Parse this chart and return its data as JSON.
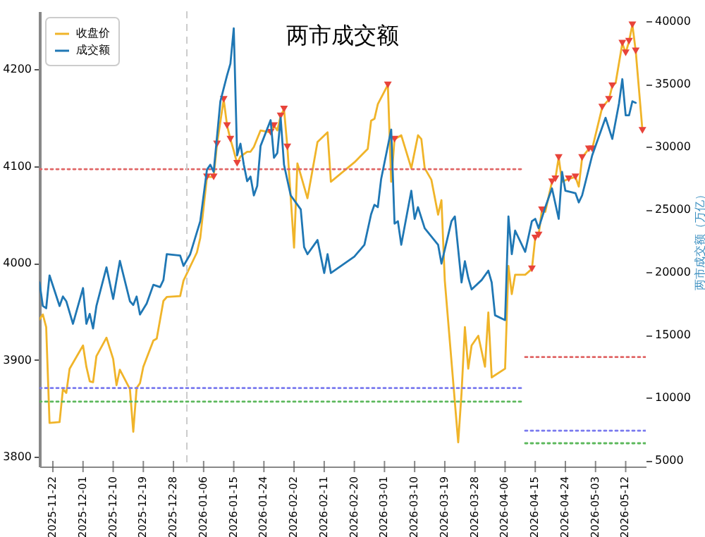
{
  "chart_data": {
    "type": "line",
    "title": "两市成交额",
    "y2label": "两市成交额（万亿）",
    "legend": "top left",
    "xlim": [
      "2025-11-18",
      "2026-05-18"
    ],
    "xticks": [
      "2025-11-22",
      "2025-12-01",
      "2025-12-10",
      "2025-12-19",
      "2025-12-28",
      "2026-01-06",
      "2026-01-15",
      "2026-01-24",
      "2026-02-02",
      "2026-02-11",
      "2026-02-20",
      "2026-03-01",
      "2026-03-10",
      "2026-03-19",
      "2026-03-28",
      "2026-04-06",
      "2026-04-15",
      "2026-04-24",
      "2026-05-03",
      "2026-05-12"
    ],
    "ylim": [
      3790,
      4260
    ],
    "yticks": [
      3800,
      3900,
      4000,
      4100,
      4200
    ],
    "y2lim": [
      4500,
      40800
    ],
    "y2ticks": [
      5000,
      10000,
      15000,
      20000,
      25000,
      30000,
      35000,
      40000
    ],
    "ref_lines": [
      {
        "axis": "x",
        "value": "2026-01-01",
        "color": "#cccccc",
        "line_style": "dashed"
      }
    ],
    "series": [
      {
        "name": "收盘价",
        "type": "line",
        "color": "#f0b429",
        "x": [
          "2025-11-18",
          "2025-11-19",
          "2025-11-20",
          "2025-11-21",
          "2025-11-24",
          "2025-11-25",
          "2025-11-26",
          "2025-11-27",
          "2025-12-01",
          "2025-12-02",
          "2025-12-03",
          "2025-12-04",
          "2025-12-05",
          "2025-12-08",
          "2025-12-10",
          "2025-12-11",
          "2025-12-12",
          "2025-12-15",
          "2025-12-16",
          "2025-12-17",
          "2025-12-18",
          "2025-12-19",
          "2025-12-22",
          "2025-12-23",
          "2025-12-25",
          "2025-12-26",
          "2025-12-30",
          "2025-12-31",
          "2026-01-04",
          "2026-01-05",
          "2026-01-07",
          "2026-01-09",
          "2026-01-10",
          "2026-01-12",
          "2026-01-13",
          "2026-01-14",
          "2026-01-15",
          "2026-01-16",
          "2026-01-17",
          "2026-01-19",
          "2026-01-20",
          "2026-01-21",
          "2026-01-23",
          "2026-01-26",
          "2026-01-27",
          "2026-01-28",
          "2026-01-29",
          "2026-01-30",
          "2026-01-31",
          "2026-02-02",
          "2026-02-03",
          "2026-02-06",
          "2026-02-09",
          "2026-02-12",
          "2026-02-13",
          "2026-02-20",
          "2026-02-24",
          "2026-02-25",
          "2026-02-26",
          "2026-02-27",
          "2026-03-02",
          "2026-03-03",
          "2026-03-04",
          "2026-03-06",
          "2026-03-09",
          "2026-03-11",
          "2026-03-12",
          "2026-03-13",
          "2026-03-15",
          "2026-03-17",
          "2026-03-18",
          "2026-03-19",
          "2026-03-23",
          "2026-03-24",
          "2026-03-25",
          "2026-03-26",
          "2026-03-27",
          "2026-03-29",
          "2026-03-31",
          "2026-04-01",
          "2026-04-02",
          "2026-04-06",
          "2026-04-07",
          "2026-04-08",
          "2026-04-09",
          "2026-04-12",
          "2026-04-14",
          "2026-04-15",
          "2026-04-16",
          "2026-04-17",
          "2026-04-18",
          "2026-04-20",
          "2026-04-21",
          "2026-04-22",
          "2026-04-23",
          "2026-04-25",
          "2026-04-27",
          "2026-04-28",
          "2026-04-29",
          "2026-05-01",
          "2026-05-02",
          "2026-05-05",
          "2026-05-07",
          "2026-05-08",
          "2026-05-09",
          "2026-05-11",
          "2026-05-12",
          "2026-05-13",
          "2026-05-14",
          "2026-05-15",
          "2026-05-16",
          "2026-05-17"
        ],
        "values": [
          3942,
          3947,
          3934,
          3835,
          3836,
          3870,
          3866,
          3891,
          3915,
          3893,
          3878,
          3877,
          3904,
          3923,
          3901,
          3874,
          3890,
          3870,
          3826,
          3871,
          3876,
          3893,
          3920,
          3922,
          3961,
          3965,
          3966,
          3982,
          4011,
          4026,
          4089,
          4089,
          4123,
          4169,
          4142,
          4128,
          4116,
          4103,
          4110,
          4115,
          4115,
          4120,
          4137,
          4135,
          4142,
          4137,
          4152,
          4159,
          4120,
          4016,
          4103,
          4067,
          4125,
          4135,
          4084,
          4104,
          4118,
          4147,
          4149,
          4164,
          4184,
          4084,
          4128,
          4132,
          4098,
          4132,
          4128,
          4098,
          4086,
          4050,
          4065,
          3982,
          3815,
          3866,
          3934,
          3891,
          3915,
          3925,
          3893,
          3949,
          3882,
          3891,
          3997,
          3968,
          3988,
          3988,
          3994,
          4026,
          4029,
          4055,
          4053,
          4084,
          4087,
          4109,
          4084,
          4087,
          4089,
          4079,
          4109,
          4118,
          4118,
          4161,
          4169,
          4183,
          4186,
          4227,
          4217,
          4229,
          4246,
          4219,
          4178,
          4137
        ]
      },
      {
        "name": "成交额",
        "type": "line",
        "axis": "y2",
        "color": "#1f77b4",
        "x": [
          "2025-11-18",
          "2025-11-19",
          "2025-11-20",
          "2025-11-21",
          "2025-11-24",
          "2025-11-25",
          "2025-11-26",
          "2025-11-28",
          "2025-12-01",
          "2025-12-02",
          "2025-12-03",
          "2025-12-04",
          "2025-12-05",
          "2025-12-08",
          "2025-12-10",
          "2025-12-12",
          "2025-12-15",
          "2025-12-16",
          "2025-12-17",
          "2025-12-18",
          "2025-12-20",
          "2025-12-22",
          "2025-12-24",
          "2025-12-25",
          "2025-12-26",
          "2025-12-30",
          "2025-12-31",
          "2026-01-02",
          "2026-01-05",
          "2026-01-07",
          "2026-01-08",
          "2026-01-09",
          "2026-01-10",
          "2026-01-11",
          "2026-01-13",
          "2026-01-14",
          "2026-01-15",
          "2026-01-16",
          "2026-01-17",
          "2026-01-18",
          "2026-01-19",
          "2026-01-20",
          "2026-01-21",
          "2026-01-22",
          "2026-01-23",
          "2026-01-26",
          "2026-01-27",
          "2026-01-28",
          "2026-01-29",
          "2026-01-30",
          "2026-02-01",
          "2026-02-04",
          "2026-02-05",
          "2026-02-06",
          "2026-02-09",
          "2026-02-11",
          "2026-02-12",
          "2026-02-13",
          "2026-02-20",
          "2026-02-23",
          "2026-02-25",
          "2026-02-26",
          "2026-02-27",
          "2026-02-28",
          "2026-03-03",
          "2026-03-04",
          "2026-03-05",
          "2026-03-06",
          "2026-03-09",
          "2026-03-10",
          "2026-03-11",
          "2026-03-13",
          "2026-03-17",
          "2026-03-18",
          "2026-03-21",
          "2026-03-22",
          "2026-03-24",
          "2026-03-25",
          "2026-03-26",
          "2026-03-27",
          "2026-03-30",
          "2026-04-01",
          "2026-04-02",
          "2026-04-03",
          "2026-04-06",
          "2026-04-07",
          "2026-04-08",
          "2026-04-09",
          "2026-04-12",
          "2026-04-14",
          "2026-04-15",
          "2026-04-16",
          "2026-04-18",
          "2026-04-20",
          "2026-04-22",
          "2026-04-23",
          "2026-04-24",
          "2026-04-27",
          "2026-04-28",
          "2026-04-29",
          "2026-05-02",
          "2026-05-06",
          "2026-05-08",
          "2026-05-10",
          "2026-05-11",
          "2026-05-12",
          "2026-05-13",
          "2026-05-14",
          "2026-05-15"
        ],
        "values": [
          19180,
          17300,
          17120,
          19740,
          17300,
          18060,
          17680,
          15880,
          18730,
          15880,
          16670,
          15510,
          17300,
          20380,
          17860,
          20900,
          17680,
          17380,
          18060,
          16620,
          17490,
          18990,
          18810,
          19370,
          21430,
          21320,
          20500,
          21430,
          24060,
          28180,
          28560,
          28000,
          30800,
          33620,
          35690,
          36620,
          39440,
          29310,
          30240,
          28560,
          27250,
          27620,
          26120,
          26870,
          30060,
          32120,
          29120,
          29500,
          32310,
          28560,
          26120,
          25000,
          22000,
          21430,
          22560,
          19930,
          21430,
          19930,
          21240,
          22180,
          24620,
          25370,
          25180,
          27430,
          31370,
          23870,
          24060,
          22180,
          26490,
          24250,
          25180,
          23500,
          22180,
          20680,
          24060,
          24440,
          19180,
          20870,
          19550,
          18620,
          19370,
          20120,
          19180,
          16560,
          16180,
          24440,
          21430,
          23310,
          21620,
          24060,
          24250,
          23500,
          25180,
          26680,
          24250,
          28000,
          26490,
          26300,
          25560,
          26120,
          29310,
          32310,
          30620,
          33440,
          35390,
          32500,
          32500,
          33620,
          33500
        ]
      },
      {
        "type": "scatter",
        "marker": "triangle",
        "color": "#e8433a",
        "x": [
          "2026-01-07",
          "2026-01-09",
          "2026-01-10",
          "2026-01-12",
          "2026-01-13",
          "2026-01-14",
          "2026-01-16",
          "2026-01-26",
          "2026-01-27",
          "2026-01-29",
          "2026-01-30",
          "2026-01-31",
          "2026-03-02",
          "2026-03-04",
          "2026-04-14",
          "2026-04-15",
          "2026-04-16",
          "2026-04-17",
          "2026-04-20",
          "2026-04-21",
          "2026-04-22",
          "2026-04-25",
          "2026-04-27",
          "2026-04-29",
          "2026-05-01",
          "2026-05-02",
          "2026-05-05",
          "2026-05-07",
          "2026-05-08",
          "2026-05-11",
          "2026-05-12",
          "2026-05-13",
          "2026-05-14",
          "2026-05-15",
          "2026-05-17"
        ],
        "values": [
          4089,
          4089,
          4123,
          4169,
          4142,
          4128,
          4103,
          4135,
          4142,
          4152,
          4159,
          4120,
          4184,
          4128,
          3994,
          4026,
          4029,
          4055,
          4084,
          4087,
          4109,
          4087,
          4089,
          4109,
          4118,
          4118,
          4161,
          4169,
          4183,
          4227,
          4217,
          4229,
          4246,
          4219,
          4137
        ]
      },
      {
        "type": "line",
        "line_style": "dotted",
        "color": "#e06666",
        "x": [
          "2025-11-18",
          "2026-04-11"
        ],
        "values": [
          4097,
          4097
        ]
      },
      {
        "type": "line",
        "line_style": "dotted",
        "color": "#7b7bef",
        "x": [
          "2025-11-18",
          "2026-04-11"
        ],
        "values": [
          3871,
          3871
        ]
      },
      {
        "type": "line",
        "line_style": "dotted",
        "color": "#5cb85c",
        "x": [
          "2025-11-18",
          "2026-04-11"
        ],
        "values": [
          3857,
          3857
        ]
      },
      {
        "type": "line",
        "line_style": "dotted",
        "color": "#e06666",
        "x": [
          "2026-04-12",
          "2026-05-18"
        ],
        "values": [
          3903,
          3903
        ]
      },
      {
        "type": "line",
        "line_style": "dotted",
        "color": "#7b7bef",
        "x": [
          "2026-04-12",
          "2026-05-18"
        ],
        "values": [
          3827,
          3827
        ]
      },
      {
        "type": "line",
        "line_style": "dotted",
        "color": "#5cb85c",
        "x": [
          "2026-04-12",
          "2026-05-18"
        ],
        "values": [
          3814,
          3814
        ]
      }
    ]
  }
}
